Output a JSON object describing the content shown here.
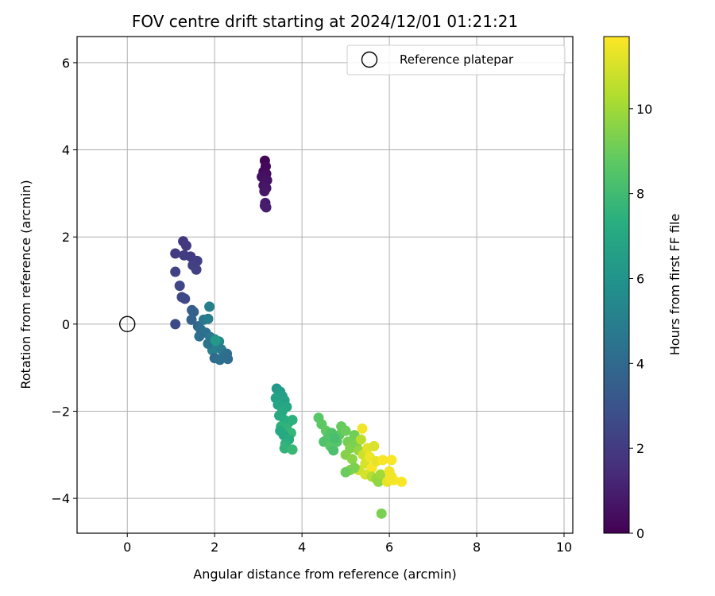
{
  "chart_data": {
    "type": "scatter",
    "title": "FOV centre drift starting at 2024/12/01 01:21:21",
    "xlabel": "Angular distance from reference (arcmin)",
    "ylabel": "Rotation from reference (arcmin)",
    "xlim": [
      -1.15,
      10.2
    ],
    "ylim": [
      -4.8,
      6.6
    ],
    "xticks": [
      0,
      2,
      4,
      6,
      8,
      10
    ],
    "yticks": [
      -4,
      -2,
      0,
      2,
      4,
      6
    ],
    "xtick_labels": [
      "0",
      "2",
      "4",
      "6",
      "8",
      "10"
    ],
    "ytick_labels": [
      "−4",
      "−2",
      "0",
      "2",
      "4",
      "6"
    ],
    "grid": true,
    "legend": {
      "placement": "top-right",
      "entries": [
        "Reference platepar"
      ]
    },
    "reference_point": {
      "x": 0,
      "y": 0,
      "label": "Reference platepar"
    },
    "colorbar": {
      "label": "Hours from first FF file",
      "colormap": "viridis",
      "range": [
        0,
        11.7
      ],
      "ticks": [
        0,
        2,
        4,
        6,
        8,
        10
      ],
      "tick_labels": [
        "0",
        "2",
        "4",
        "6",
        "8",
        "10"
      ]
    },
    "points": [
      {
        "x": 3.15,
        "y": 3.75,
        "h": 0.1
      },
      {
        "x": 3.17,
        "y": 3.62,
        "h": 0.2
      },
      {
        "x": 3.12,
        "y": 3.5,
        "h": 0.3
      },
      {
        "x": 3.18,
        "y": 3.45,
        "h": 0.4
      },
      {
        "x": 3.08,
        "y": 3.38,
        "h": 0.5
      },
      {
        "x": 3.2,
        "y": 3.3,
        "h": 0.55
      },
      {
        "x": 3.15,
        "y": 3.25,
        "h": 0.6
      },
      {
        "x": 3.12,
        "y": 3.18,
        "h": 0.65
      },
      {
        "x": 3.18,
        "y": 3.12,
        "h": 0.7
      },
      {
        "x": 3.14,
        "y": 3.05,
        "h": 0.75
      },
      {
        "x": 3.16,
        "y": 2.78,
        "h": 0.85
      },
      {
        "x": 3.15,
        "y": 2.72,
        "h": 0.9
      },
      {
        "x": 3.18,
        "y": 2.68,
        "h": 0.95
      },
      {
        "x": 1.28,
        "y": 1.9,
        "h": 1.9
      },
      {
        "x": 1.35,
        "y": 1.8,
        "h": 1.95
      },
      {
        "x": 1.1,
        "y": 1.62,
        "h": 2.0
      },
      {
        "x": 1.3,
        "y": 1.58,
        "h": 2.05
      },
      {
        "x": 1.45,
        "y": 1.55,
        "h": 2.1
      },
      {
        "x": 1.6,
        "y": 1.45,
        "h": 2.15
      },
      {
        "x": 1.5,
        "y": 1.35,
        "h": 2.2
      },
      {
        "x": 1.58,
        "y": 1.25,
        "h": 2.25
      },
      {
        "x": 1.1,
        "y": 1.2,
        "h": 2.3
      },
      {
        "x": 1.2,
        "y": 0.88,
        "h": 2.4
      },
      {
        "x": 1.25,
        "y": 0.62,
        "h": 2.5
      },
      {
        "x": 1.32,
        "y": 0.58,
        "h": 2.6
      },
      {
        "x": 1.1,
        "y": 0.0,
        "h": 2.6
      },
      {
        "x": 1.48,
        "y": 0.32,
        "h": 3.4
      },
      {
        "x": 1.52,
        "y": 0.28,
        "h": 3.6
      },
      {
        "x": 1.47,
        "y": 0.1,
        "h": 3.7
      },
      {
        "x": 1.62,
        "y": -0.05,
        "h": 3.9
      },
      {
        "x": 1.88,
        "y": 0.4,
        "h": 5.0
      },
      {
        "x": 1.75,
        "y": 0.1,
        "h": 4.6
      },
      {
        "x": 1.85,
        "y": 0.12,
        "h": 4.9
      },
      {
        "x": 1.68,
        "y": -0.12,
        "h": 4.3
      },
      {
        "x": 1.8,
        "y": -0.2,
        "h": 4.4
      },
      {
        "x": 1.9,
        "y": -0.3,
        "h": 4.6
      },
      {
        "x": 1.65,
        "y": -0.28,
        "h": 4.2
      },
      {
        "x": 2.0,
        "y": -0.35,
        "h": 5.2
      },
      {
        "x": 2.1,
        "y": -0.4,
        "h": 5.4
      },
      {
        "x": 2.05,
        "y": -0.5,
        "h": 5.6
      },
      {
        "x": 1.95,
        "y": -0.6,
        "h": 5.1
      },
      {
        "x": 2.15,
        "y": -0.58,
        "h": 4.8
      },
      {
        "x": 2.2,
        "y": -0.75,
        "h": 4.5
      },
      {
        "x": 2.28,
        "y": -0.68,
        "h": 4.2
      },
      {
        "x": 2.3,
        "y": -0.8,
        "h": 4.1
      },
      {
        "x": 2.0,
        "y": -0.78,
        "h": 4.0
      },
      {
        "x": 2.12,
        "y": -0.82,
        "h": 4.3
      },
      {
        "x": 1.85,
        "y": -0.45,
        "h": 4.5
      },
      {
        "x": 2.02,
        "y": -0.38,
        "h": 6.3
      },
      {
        "x": 3.42,
        "y": -1.48,
        "h": 6.2
      },
      {
        "x": 3.5,
        "y": -1.55,
        "h": 6.4
      },
      {
        "x": 3.55,
        "y": -1.65,
        "h": 6.5
      },
      {
        "x": 3.6,
        "y": -1.75,
        "h": 6.6
      },
      {
        "x": 3.4,
        "y": -1.7,
        "h": 6.7
      },
      {
        "x": 3.45,
        "y": -1.85,
        "h": 6.8
      },
      {
        "x": 3.65,
        "y": -1.9,
        "h": 6.9
      },
      {
        "x": 3.55,
        "y": -2.0,
        "h": 7.0
      },
      {
        "x": 3.48,
        "y": -2.1,
        "h": 7.1
      },
      {
        "x": 3.6,
        "y": -2.2,
        "h": 7.2
      },
      {
        "x": 3.7,
        "y": -2.25,
        "h": 7.3
      },
      {
        "x": 3.78,
        "y": -2.2,
        "h": 7.4
      },
      {
        "x": 3.52,
        "y": -2.35,
        "h": 7.5
      },
      {
        "x": 3.65,
        "y": -2.4,
        "h": 7.6
      },
      {
        "x": 3.75,
        "y": -2.5,
        "h": 7.7
      },
      {
        "x": 3.58,
        "y": -2.55,
        "h": 7.0
      },
      {
        "x": 3.7,
        "y": -2.65,
        "h": 7.2
      },
      {
        "x": 3.62,
        "y": -2.75,
        "h": 7.4
      },
      {
        "x": 3.6,
        "y": -2.85,
        "h": 7.6
      },
      {
        "x": 3.78,
        "y": -2.88,
        "h": 7.8
      },
      {
        "x": 3.5,
        "y": -2.45,
        "h": 7.1
      },
      {
        "x": 4.38,
        "y": -2.15,
        "h": 8.6
      },
      {
        "x": 4.45,
        "y": -2.3,
        "h": 8.7
      },
      {
        "x": 4.55,
        "y": -2.45,
        "h": 8.8
      },
      {
        "x": 4.6,
        "y": -2.6,
        "h": 8.5
      },
      {
        "x": 4.5,
        "y": -2.7,
        "h": 8.4
      },
      {
        "x": 4.65,
        "y": -2.8,
        "h": 8.6
      },
      {
        "x": 4.72,
        "y": -2.9,
        "h": 8.3
      },
      {
        "x": 4.8,
        "y": -2.7,
        "h": 8.5
      },
      {
        "x": 4.85,
        "y": -2.55,
        "h": 8.7
      },
      {
        "x": 4.9,
        "y": -2.35,
        "h": 8.9
      },
      {
        "x": 5.0,
        "y": -2.45,
        "h": 9.0
      },
      {
        "x": 5.05,
        "y": -2.7,
        "h": 9.2
      },
      {
        "x": 5.1,
        "y": -2.85,
        "h": 9.4
      },
      {
        "x": 5.0,
        "y": -3.0,
        "h": 9.5
      },
      {
        "x": 5.15,
        "y": -3.1,
        "h": 9.6
      },
      {
        "x": 5.2,
        "y": -2.55,
        "h": 9.1
      },
      {
        "x": 5.25,
        "y": -2.75,
        "h": 9.3
      },
      {
        "x": 5.3,
        "y": -2.9,
        "h": 9.8
      },
      {
        "x": 5.35,
        "y": -2.65,
        "h": 10.5
      },
      {
        "x": 5.38,
        "y": -2.4,
        "h": 11.5
      },
      {
        "x": 5.4,
        "y": -3.0,
        "h": 10.8
      },
      {
        "x": 5.45,
        "y": -3.2,
        "h": 11.0
      },
      {
        "x": 5.5,
        "y": -2.85,
        "h": 11.2
      },
      {
        "x": 5.55,
        "y": -3.05,
        "h": 11.4
      },
      {
        "x": 5.6,
        "y": -3.3,
        "h": 11.6
      },
      {
        "x": 5.65,
        "y": -2.8,
        "h": 11.1
      },
      {
        "x": 5.7,
        "y": -3.15,
        "h": 11.3
      },
      {
        "x": 5.3,
        "y": -3.35,
        "h": 10.9
      },
      {
        "x": 5.45,
        "y": -3.45,
        "h": 11.0
      },
      {
        "x": 5.6,
        "y": -3.5,
        "h": 10.4
      },
      {
        "x": 5.7,
        "y": -3.55,
        "h": 9.9
      },
      {
        "x": 5.75,
        "y": -3.62,
        "h": 9.7
      },
      {
        "x": 5.8,
        "y": -3.45,
        "h": 10.0
      },
      {
        "x": 5.1,
        "y": -3.35,
        "h": 9.5
      },
      {
        "x": 5.2,
        "y": -3.3,
        "h": 9.3
      },
      {
        "x": 5.0,
        "y": -3.4,
        "h": 9.0
      },
      {
        "x": 4.68,
        "y": -2.5,
        "h": 8.4
      },
      {
        "x": 4.75,
        "y": -2.62,
        "h": 8.2
      },
      {
        "x": 5.85,
        "y": -3.12,
        "h": 11.6
      },
      {
        "x": 5.82,
        "y": -4.35,
        "h": 9.3
      },
      {
        "x": 6.05,
        "y": -3.12,
        "h": 11.6
      },
      {
        "x": 6.0,
        "y": -3.38,
        "h": 11.5
      },
      {
        "x": 6.05,
        "y": -3.5,
        "h": 11.4
      },
      {
        "x": 5.95,
        "y": -3.62,
        "h": 11.3
      },
      {
        "x": 6.1,
        "y": -3.58,
        "h": 11.6
      },
      {
        "x": 6.28,
        "y": -3.62,
        "h": 11.6
      },
      {
        "x": 6.02,
        "y": -3.55,
        "h": 11.5
      }
    ]
  }
}
